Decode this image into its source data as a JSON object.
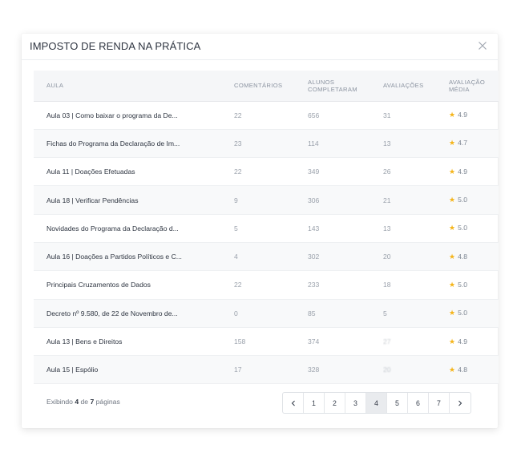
{
  "modal": {
    "title": "IMPOSTO DE RENDA NA PRÁTICA",
    "close_icon": "close-icon"
  },
  "table": {
    "headers": {
      "aula": "AULA",
      "comentarios": "COMENTÁRIOS",
      "alunos_line1": "ALUNOS",
      "alunos_line2": "COMPLETARAM",
      "avaliacoes": "AVALIAÇÕES",
      "media_line1": "AVALIAÇÃO",
      "media_line2": "MÉDIA"
    },
    "star_icon": "star-icon",
    "star_color": "#f5b51b",
    "rows": [
      {
        "aula": "Aula 03 | Como baixar o programa da De...",
        "comentarios": "22",
        "alunos": "656",
        "avaliacoes": "31",
        "media": "4.9"
      },
      {
        "aula": "Fichas do Programa da Declaração de Im...",
        "comentarios": "23",
        "alunos": "114",
        "avaliacoes": "13",
        "media": "4.7"
      },
      {
        "aula": "Aula 11 | Doações Efetuadas",
        "comentarios": "22",
        "alunos": "349",
        "avaliacoes": "26",
        "media": "4.9"
      },
      {
        "aula": "Aula 18 | Verificar Pendências",
        "comentarios": "9",
        "alunos": "306",
        "avaliacoes": "21",
        "media": "5.0"
      },
      {
        "aula": "Novidades do Programa da Declaração d...",
        "comentarios": "5",
        "alunos": "143",
        "avaliacoes": "13",
        "media": "5.0"
      },
      {
        "aula": "Aula 16 | Doações a Partidos Políticos e C...",
        "comentarios": "4",
        "alunos": "302",
        "avaliacoes": "20",
        "media": "4.8"
      },
      {
        "aula": "Principais Cruzamentos de Dados",
        "comentarios": "22",
        "alunos": "233",
        "avaliacoes": "18",
        "media": "5.0"
      },
      {
        "aula": "Decreto nº 9.580, de 22 de Novembro de...",
        "comentarios": "0",
        "alunos": "85",
        "avaliacoes": "5",
        "media": "5.0"
      },
      {
        "aula": "Aula 13 | Bens e Direitos",
        "comentarios": "158",
        "alunos": "374",
        "avaliacoes": "27",
        "media": "4.9"
      },
      {
        "aula": "Aula 15 | Espólio",
        "comentarios": "17",
        "alunos": "328",
        "avaliacoes": "20",
        "media": "4.8"
      }
    ]
  },
  "footer": {
    "prefix": "Exibindo",
    "current": "4",
    "middle": "de",
    "total": "7",
    "suffix": "páginas"
  },
  "pagination": {
    "prev_icon": "chevron-left-icon",
    "next_icon": "chevron-right-icon",
    "pages": [
      "1",
      "2",
      "3",
      "4",
      "5",
      "6",
      "7"
    ],
    "active_page": "4"
  }
}
